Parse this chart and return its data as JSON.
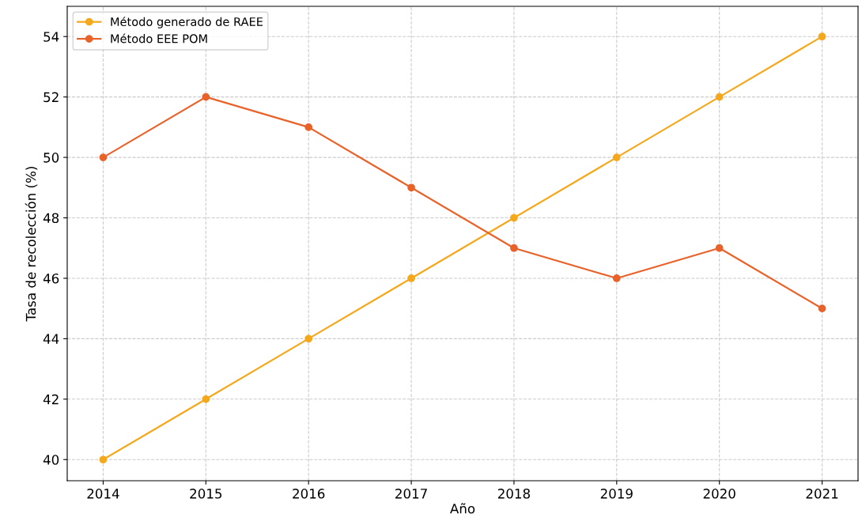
{
  "chart_data": {
    "type": "line",
    "xlabel": "Año",
    "ylabel": "Tasa de recolección (%)",
    "x": [
      2014,
      2015,
      2016,
      2017,
      2018,
      2019,
      2020,
      2021
    ],
    "series": [
      {
        "name": "Método generado de RAEE",
        "color": "#f5a81c",
        "values": [
          40,
          42,
          44,
          46,
          48,
          50,
          52,
          54
        ]
      },
      {
        "name": "Método EEE POM",
        "color": "#e8622a",
        "values": [
          50,
          52,
          51,
          49,
          47,
          46,
          47,
          45
        ]
      }
    ],
    "xlim": [
      2013.65,
      2021.35
    ],
    "xticks": [
      2014,
      2015,
      2016,
      2017,
      2018,
      2019,
      2020,
      2021
    ],
    "ylim": [
      39.3,
      55
    ],
    "yticks": [
      40,
      42,
      44,
      46,
      48,
      50,
      52,
      54
    ],
    "grid": true,
    "legend": "top left",
    "marker": "circle",
    "line_style": "solid"
  }
}
